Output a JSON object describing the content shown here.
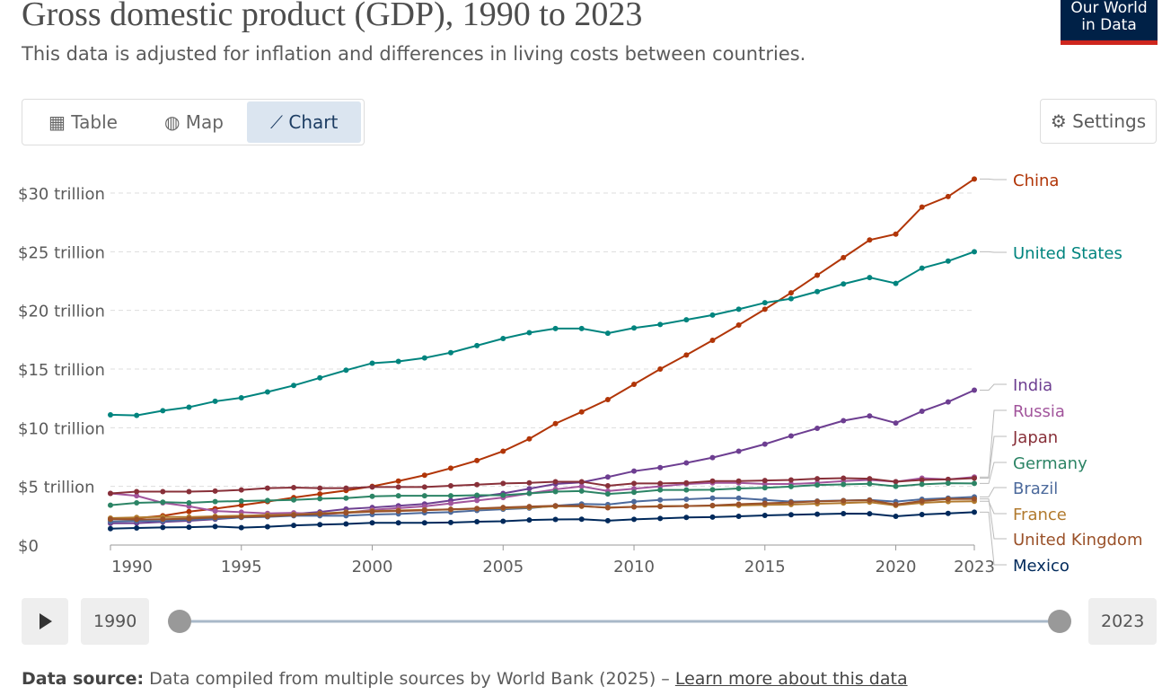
{
  "header": {
    "title": "Gross domestic product (GDP), 1990 to 2023",
    "subtitle": "This data is adjusted for inflation and differences in living costs between countries.",
    "logo": [
      "Our World",
      "in Data"
    ]
  },
  "tabs": [
    "Table",
    "Map",
    "Chart"
  ],
  "settings": "Settings",
  "timeline": {
    "start": "1990",
    "end": "2023"
  },
  "footer": {
    "label": "Data source:",
    "text": "Data compiled from multiple sources by World Bank (2025) –",
    "link": "Learn more about this data"
  },
  "chart_data": {
    "type": "line",
    "x": [
      1990,
      1991,
      1992,
      1993,
      1994,
      1995,
      1996,
      1997,
      1998,
      1999,
      2000,
      2001,
      2002,
      2003,
      2004,
      2005,
      2006,
      2007,
      2008,
      2009,
      2010,
      2011,
      2012,
      2013,
      2014,
      2015,
      2016,
      2017,
      2018,
      2019,
      2020,
      2021,
      2022,
      2023
    ],
    "xlim": [
      1990,
      2023
    ],
    "xticks": [
      1990,
      1995,
      2000,
      2005,
      2010,
      2015,
      2020,
      2023
    ],
    "ylim": [
      0,
      30
    ],
    "yticks": [
      {
        "value": 0,
        "label": "$0"
      },
      {
        "value": 5,
        "label": "$5 trillion"
      },
      {
        "value": 10,
        "label": "$10 trillion"
      },
      {
        "value": 15,
        "label": "$15 trillion"
      },
      {
        "value": 20,
        "label": "$20 trillion"
      },
      {
        "value": 25,
        "label": "$25 trillion"
      },
      {
        "value": 30,
        "label": "$30 trillion"
      }
    ],
    "grid": true,
    "series": [
      {
        "name": "China",
        "color": "#b13507",
        "values": [
          2.2,
          2.3,
          2.5,
          2.85,
          3.1,
          3.4,
          3.7,
          4.05,
          4.35,
          4.65,
          5.0,
          5.45,
          5.95,
          6.55,
          7.2,
          8.0,
          9.05,
          10.35,
          11.35,
          12.4,
          13.7,
          15.0,
          16.2,
          17.45,
          18.75,
          20.1,
          21.5,
          23.0,
          24.5,
          26.0,
          26.5,
          28.8,
          29.7,
          31.2
        ]
      },
      {
        "name": "United States",
        "color": "#00847e",
        "values": [
          11.1,
          11.05,
          11.45,
          11.75,
          12.25,
          12.55,
          13.05,
          13.6,
          14.25,
          14.9,
          15.5,
          15.65,
          15.95,
          16.4,
          17.0,
          17.6,
          18.1,
          18.45,
          18.45,
          18.05,
          18.5,
          18.8,
          19.2,
          19.6,
          20.1,
          20.65,
          21.0,
          21.6,
          22.25,
          22.8,
          22.3,
          23.6,
          24.2,
          25.0
        ]
      },
      {
        "name": "India",
        "color": "#6d3e91",
        "values": [
          1.85,
          1.87,
          1.97,
          2.07,
          2.2,
          2.36,
          2.54,
          2.65,
          2.82,
          3.07,
          3.2,
          3.35,
          3.5,
          3.8,
          4.1,
          4.4,
          4.8,
          5.2,
          5.35,
          5.8,
          6.3,
          6.6,
          7.0,
          7.45,
          8.0,
          8.6,
          9.3,
          9.95,
          10.6,
          11.0,
          10.4,
          11.4,
          12.2,
          13.2
        ]
      },
      {
        "name": "Russia",
        "color": "#a2559c",
        "values": [
          4.4,
          4.2,
          3.6,
          3.3,
          2.9,
          2.8,
          2.7,
          2.75,
          2.6,
          2.75,
          3.0,
          3.15,
          3.3,
          3.55,
          3.8,
          4.05,
          4.4,
          4.75,
          5.0,
          4.6,
          4.8,
          5.0,
          5.2,
          5.3,
          5.3,
          5.2,
          5.2,
          5.3,
          5.45,
          5.55,
          5.4,
          5.7,
          5.6,
          5.8
        ]
      },
      {
        "name": "Japan",
        "color": "#883039",
        "values": [
          4.4,
          4.55,
          4.55,
          4.55,
          4.6,
          4.7,
          4.85,
          4.9,
          4.85,
          4.85,
          4.95,
          4.95,
          4.95,
          5.05,
          5.15,
          5.25,
          5.3,
          5.4,
          5.4,
          5.05,
          5.25,
          5.25,
          5.3,
          5.45,
          5.45,
          5.5,
          5.55,
          5.65,
          5.7,
          5.65,
          5.4,
          5.55,
          5.6,
          5.7
        ]
      },
      {
        "name": "Germany",
        "color": "#2c8465",
        "values": [
          3.4,
          3.6,
          3.65,
          3.6,
          3.7,
          3.75,
          3.8,
          3.85,
          3.95,
          4.0,
          4.15,
          4.2,
          4.2,
          4.2,
          4.25,
          4.25,
          4.4,
          4.55,
          4.6,
          4.35,
          4.5,
          4.7,
          4.7,
          4.72,
          4.82,
          4.88,
          4.98,
          5.12,
          5.17,
          5.22,
          5.0,
          5.18,
          5.27,
          5.25
        ]
      },
      {
        "name": "Brazil",
        "color": "#4c6a9c",
        "values": [
          2.0,
          2.05,
          2.05,
          2.15,
          2.25,
          2.35,
          2.4,
          2.5,
          2.5,
          2.5,
          2.6,
          2.65,
          2.75,
          2.8,
          2.95,
          3.05,
          3.15,
          3.35,
          3.5,
          3.45,
          3.7,
          3.85,
          3.9,
          4.0,
          4.0,
          3.85,
          3.7,
          3.75,
          3.8,
          3.85,
          3.7,
          3.9,
          4.0,
          4.1
        ]
      },
      {
        "name": "France",
        "color": "#b17a2e",
        "values": [
          2.3,
          2.35,
          2.4,
          2.38,
          2.45,
          2.5,
          2.55,
          2.6,
          2.7,
          2.8,
          2.9,
          2.95,
          3.0,
          3.02,
          3.1,
          3.15,
          3.2,
          3.3,
          3.3,
          3.2,
          3.25,
          3.32,
          3.33,
          3.35,
          3.38,
          3.42,
          3.45,
          3.52,
          3.58,
          3.65,
          3.38,
          3.6,
          3.7,
          3.73
        ]
      },
      {
        "name": "United Kingdom",
        "color": "#9a5129",
        "values": [
          2.2,
          2.18,
          2.2,
          2.25,
          2.35,
          2.4,
          2.45,
          2.55,
          2.65,
          2.75,
          2.85,
          2.9,
          2.97,
          3.05,
          3.12,
          3.2,
          3.28,
          3.35,
          3.33,
          3.18,
          3.25,
          3.28,
          3.32,
          3.38,
          3.48,
          3.56,
          3.63,
          3.72,
          3.78,
          3.83,
          3.45,
          3.75,
          3.92,
          3.93
        ]
      },
      {
        "name": "Mexico",
        "color": "#00295b",
        "values": [
          1.4,
          1.45,
          1.5,
          1.52,
          1.58,
          1.48,
          1.56,
          1.67,
          1.74,
          1.8,
          1.89,
          1.89,
          1.89,
          1.92,
          1.99,
          2.03,
          2.13,
          2.18,
          2.2,
          2.08,
          2.19,
          2.27,
          2.35,
          2.38,
          2.45,
          2.53,
          2.58,
          2.63,
          2.68,
          2.67,
          2.45,
          2.6,
          2.7,
          2.8
        ]
      }
    ]
  }
}
